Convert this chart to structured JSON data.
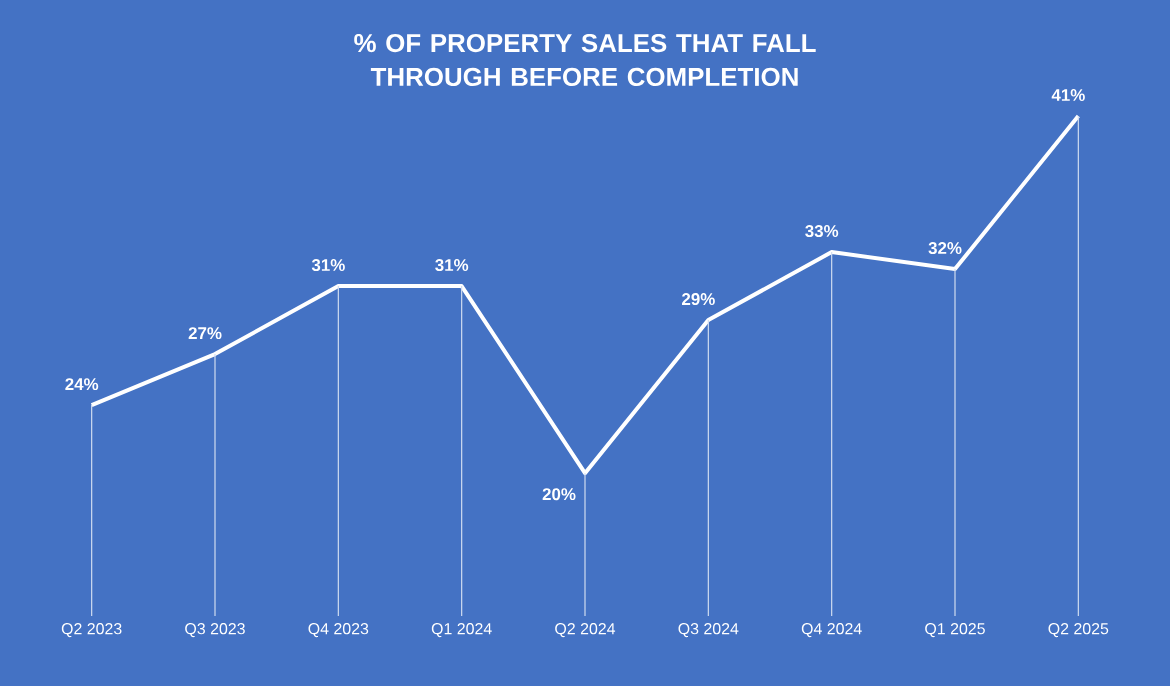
{
  "chart_data": {
    "type": "line",
    "title": "% OF PROPERTY SALES THAT FALL THROUGH BEFORE COMPLETION",
    "categories": [
      "Q2 2023",
      "Q3 2023",
      "Q4 2023",
      "Q1 2024",
      "Q2 2024",
      "Q3 2024",
      "Q4 2024",
      "Q1 2025",
      "Q2 2025"
    ],
    "series": [
      {
        "color": "#ffffff",
        "values": [
          24,
          27,
          31,
          31,
          20,
          29,
          33,
          32,
          41
        ],
        "value_labels": [
          "24%",
          "27%",
          "31%",
          "31%",
          "20%",
          "29%",
          "33%",
          "32%",
          "41%"
        ]
      }
    ],
    "tick_labels": "x",
    "grid": "x",
    "marker": "none",
    "line_style": "solid"
  }
}
